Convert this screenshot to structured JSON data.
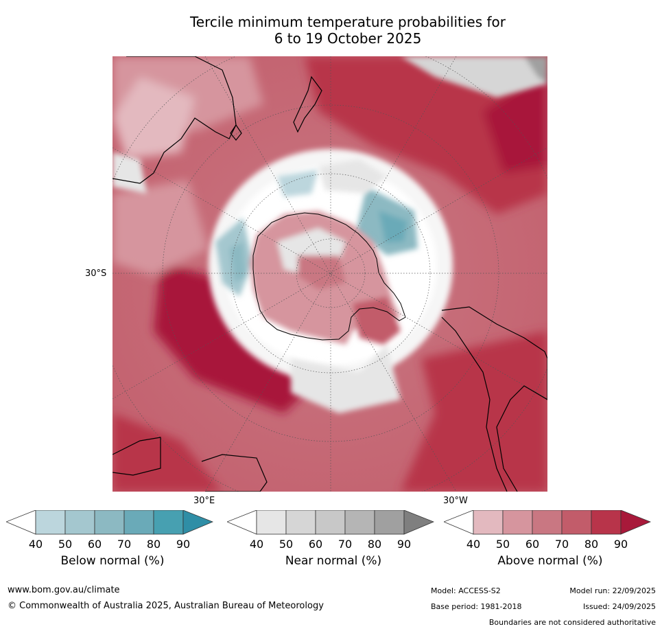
{
  "title": {
    "line1": "Tercile minimum temperature probabilities for",
    "line2": "6 to 19 October 2025"
  },
  "map": {
    "projection": "south-polar-stereographic",
    "lat_label": "30°S",
    "lon_label_east": "30°E",
    "lon_label_west": "30°W"
  },
  "colorbars": [
    {
      "label": "Below normal (%)",
      "ticks": [
        "40",
        "50",
        "60",
        "70",
        "80",
        "90"
      ],
      "colors": [
        "#ffffff",
        "#bcd6dd",
        "#a4c7cf",
        "#8cb9c2",
        "#6aaab8",
        "#47a0b1",
        "#2f8ea6"
      ]
    },
    {
      "label": "Near normal (%)",
      "ticks": [
        "40",
        "50",
        "60",
        "70",
        "80",
        "90"
      ],
      "colors": [
        "#ffffff",
        "#e6e6e6",
        "#d6d6d6",
        "#c8c8c8",
        "#b5b5b5",
        "#a0a0a0",
        "#7f7f7f"
      ]
    },
    {
      "label": "Above normal (%)",
      "ticks": [
        "40",
        "50",
        "60",
        "70",
        "80",
        "90"
      ],
      "colors": [
        "#ffffff",
        "#e3b9bf",
        "#d6959e",
        "#c97782",
        "#c25c6a",
        "#b8344a",
        "#a8193a"
      ]
    }
  ],
  "footer": {
    "website": "www.bom.gov.au/climate",
    "copyright": "© Commonwealth of Australia 2025, Australian Bureau of Meteorology",
    "model": "Model: ACCESS-S2",
    "base_period": "Base period: 1981-2018",
    "model_run": "Model run: 22/09/2025",
    "issued": "Issued: 24/09/2025",
    "disclaimer": "Boundaries are not considered authoritative"
  }
}
